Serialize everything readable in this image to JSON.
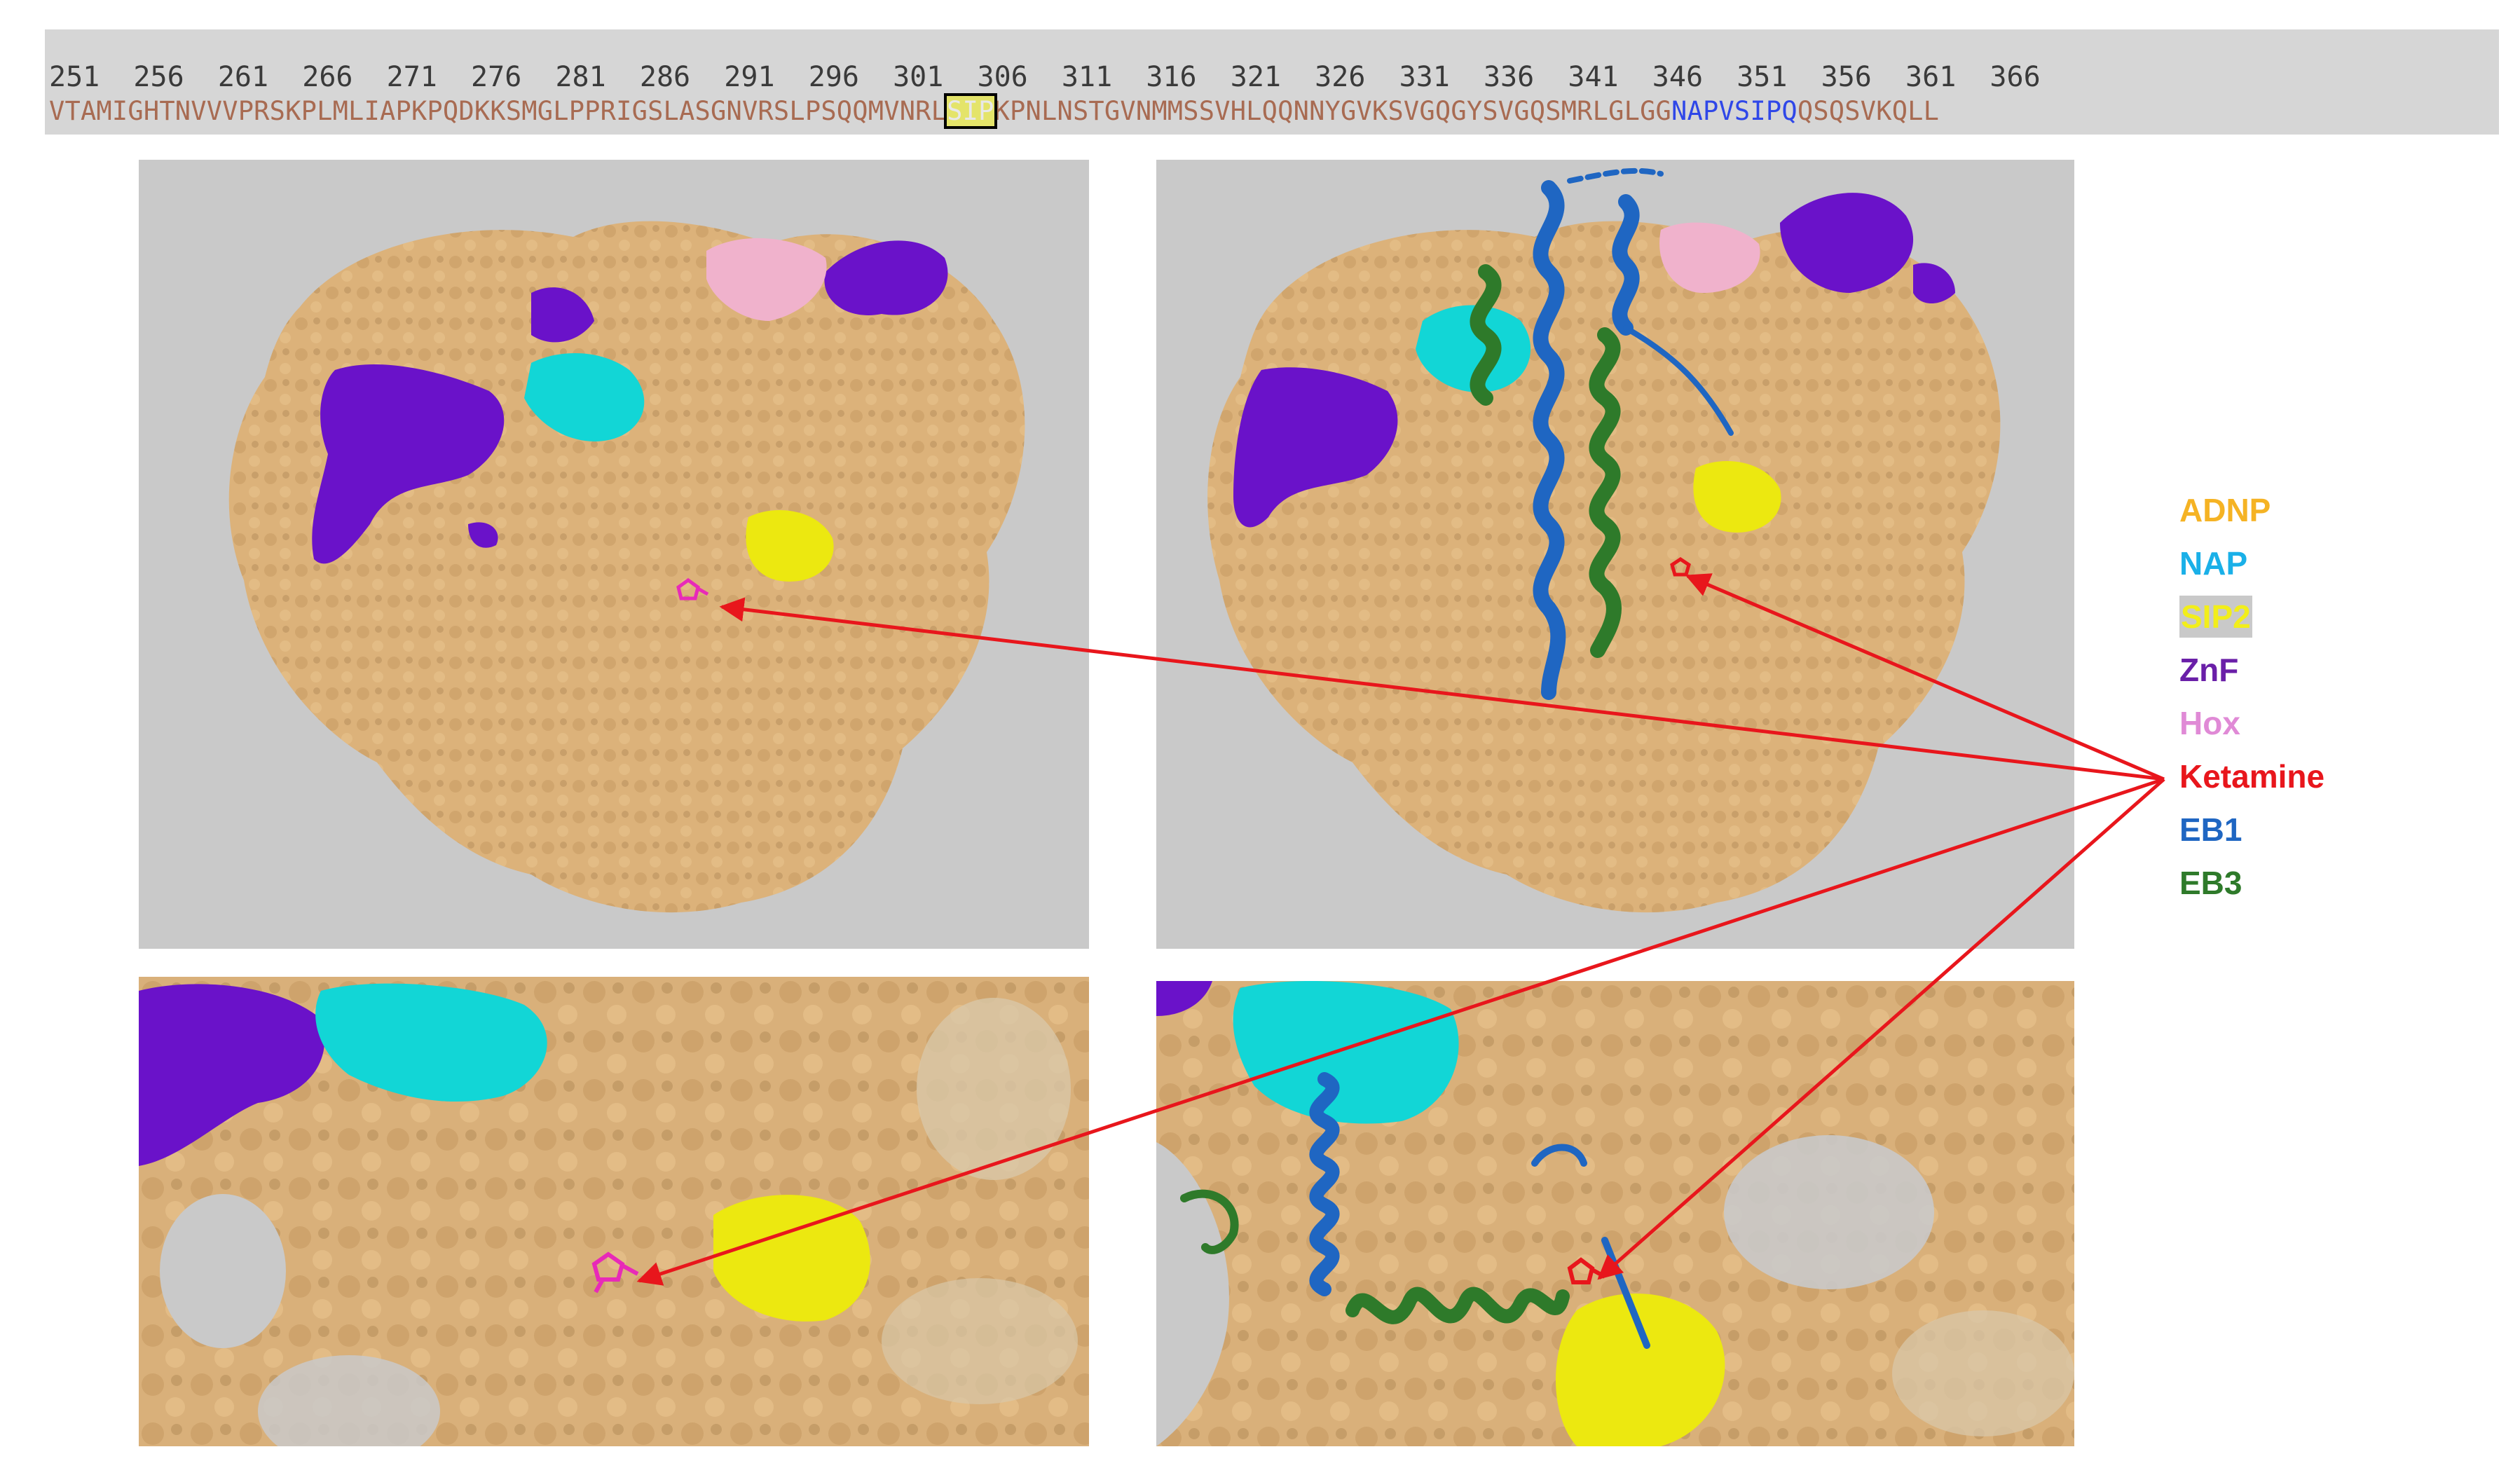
{
  "sequence": {
    "numbers": "251  256  261  266  271  276  281  286  291  296  301  306  311  316  321  326  331  336  341  346  351  356  361  366",
    "before_sip": "VTAMIGHTNVVVPRSKPLMLIAPKPQDKKSMGLPPRIGSLASGNVRSLPSQQMVNRL",
    "sip": "SIP",
    "middle": "KPNLNSTGVNMMSSVHLQQNNYGVKSVGQGYSVGQSMRLGLGG",
    "nap": "NAPVSIPQ",
    "after": "QSQSVKQLL"
  },
  "legend": [
    {
      "label": "ADNP",
      "color": "#f5b324"
    },
    {
      "label": "NAP",
      "color": "#1ab0e8"
    },
    {
      "label": "SIP2",
      "color": "#f2ee1a"
    },
    {
      "label": "ZnF",
      "color": "#6a1fa8"
    },
    {
      "label": "Hox",
      "color": "#e08ad6"
    },
    {
      "label": "Ketamine",
      "color": "#e8161c"
    },
    {
      "label": "EB1",
      "color": "#1f66c2"
    },
    {
      "label": "EB3",
      "color": "#2e7a2a"
    }
  ],
  "colors": {
    "surface": "#dcb27a",
    "surface_shadow": "#b8905c",
    "znf": "#6a12c9",
    "nap_region": "#12d6d6",
    "sip2_region": "#ece810",
    "hox_region": "#f0b2cc",
    "ketamine_mark": "#e82ab8",
    "arrow": "#e8161c",
    "panel_bg": "#c9c9c9"
  }
}
